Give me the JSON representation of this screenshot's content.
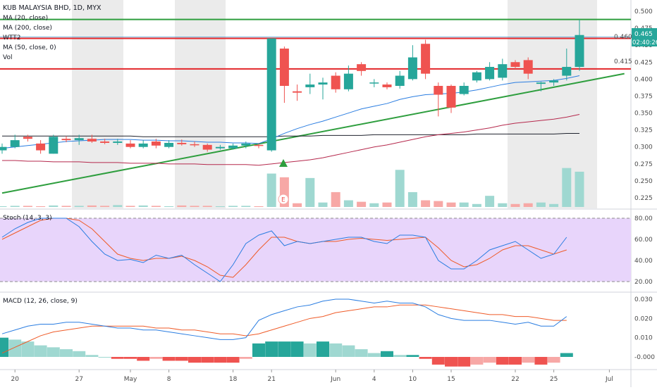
{
  "header": {
    "symbol": "KUB MALAYSIA BHD, 1D, MYX",
    "indicators": [
      "MA (20, close)",
      "MA (200, close)",
      "WTT2",
      "MA (50, close, 0)",
      "Vol"
    ]
  },
  "price_axis": {
    "ticks": [
      "0.500",
      "0.475",
      "0.450",
      "0.425",
      "0.400",
      "0.375",
      "0.350",
      "0.325",
      "0.300",
      "0.275",
      "0.250",
      "0.225"
    ],
    "current_price": "0.465",
    "countdown": "02:40:26",
    "level_label_high": "0.460",
    "level_label_low": "0.415"
  },
  "stoch": {
    "label": "Stoch (14, 3, 3)",
    "ticks": [
      "80.00",
      "60.00",
      "40.00",
      "20.00"
    ]
  },
  "macd": {
    "label": "MACD (12, 26, close, 9)",
    "ticks": [
      "0.030",
      "0.020",
      "0.010",
      "-0.000"
    ]
  },
  "date_axis": {
    "labels": [
      {
        "text": "20",
        "i": 1
      },
      {
        "text": "27",
        "i": 6
      },
      {
        "text": "May",
        "i": 10
      },
      {
        "text": "8",
        "i": 13
      },
      {
        "text": "18",
        "i": 18
      },
      {
        "text": "21",
        "i": 21
      },
      {
        "text": "Jun",
        "i": 26
      },
      {
        "text": "4",
        "i": 29
      },
      {
        "text": "10",
        "i": 32
      },
      {
        "text": "15",
        "i": 35
      },
      {
        "text": "22",
        "i": 40
      },
      {
        "text": "25",
        "i": 43
      },
      {
        "text": "Jul",
        "i": 47
      }
    ]
  },
  "marker": {
    "earnings_letter": "E"
  },
  "colors": {
    "up": "#26a69a",
    "down": "#ef5350",
    "up_vol": "#9fd8d1",
    "down_vol": "#f7a8a6",
    "ma20": "#2a7de1",
    "ma200": "#1e222d",
    "ma50": "#b5284c",
    "stoch_k": "#2a7de1",
    "stoch_d": "#ef5b28",
    "support": "#2e9e3e",
    "resistance": "#e3262a",
    "level_green": "#2e9e3e"
  },
  "chart_data": {
    "type": "candlestick",
    "candles": [
      {
        "o": 0.295,
        "h": 0.305,
        "l": 0.29,
        "c": 0.3
      },
      {
        "o": 0.3,
        "h": 0.318,
        "l": 0.298,
        "c": 0.31
      },
      {
        "o": 0.315,
        "h": 0.318,
        "l": 0.308,
        "c": 0.312
      },
      {
        "o": 0.305,
        "h": 0.31,
        "l": 0.29,
        "c": 0.295
      },
      {
        "o": 0.29,
        "h": 0.318,
        "l": 0.29,
        "c": 0.315
      },
      {
        "o": 0.312,
        "h": 0.316,
        "l": 0.307,
        "c": 0.31
      },
      {
        "o": 0.31,
        "h": 0.318,
        "l": 0.303,
        "c": 0.313
      },
      {
        "o": 0.312,
        "h": 0.318,
        "l": 0.306,
        "c": 0.308
      },
      {
        "o": 0.308,
        "h": 0.312,
        "l": 0.304,
        "c": 0.306
      },
      {
        "o": 0.306,
        "h": 0.312,
        "l": 0.303,
        "c": 0.308
      },
      {
        "o": 0.305,
        "h": 0.31,
        "l": 0.298,
        "c": 0.3
      },
      {
        "o": 0.3,
        "h": 0.31,
        "l": 0.298,
        "c": 0.305
      },
      {
        "o": 0.308,
        "h": 0.312,
        "l": 0.298,
        "c": 0.302
      },
      {
        "o": 0.3,
        "h": 0.31,
        "l": 0.298,
        "c": 0.306
      },
      {
        "o": 0.306,
        "h": 0.311,
        "l": 0.302,
        "c": 0.304
      },
      {
        "o": 0.304,
        "h": 0.308,
        "l": 0.3,
        "c": 0.303
      },
      {
        "o": 0.303,
        "h": 0.305,
        "l": 0.293,
        "c": 0.296
      },
      {
        "o": 0.298,
        "h": 0.303,
        "l": 0.296,
        "c": 0.3
      },
      {
        "o": 0.298,
        "h": 0.305,
        "l": 0.296,
        "c": 0.302
      },
      {
        "o": 0.302,
        "h": 0.308,
        "l": 0.298,
        "c": 0.305
      },
      {
        "o": 0.303,
        "h": 0.305,
        "l": 0.298,
        "c": 0.302
      },
      {
        "o": 0.295,
        "h": 0.46,
        "l": 0.293,
        "c": 0.46
      },
      {
        "o": 0.445,
        "h": 0.448,
        "l": 0.365,
        "c": 0.39
      },
      {
        "o": 0.382,
        "h": 0.392,
        "l": 0.368,
        "c": 0.38
      },
      {
        "o": 0.388,
        "h": 0.408,
        "l": 0.378,
        "c": 0.392
      },
      {
        "o": 0.392,
        "h": 0.402,
        "l": 0.37,
        "c": 0.395
      },
      {
        "o": 0.405,
        "h": 0.41,
        "l": 0.38,
        "c": 0.385
      },
      {
        "o": 0.385,
        "h": 0.42,
        "l": 0.382,
        "c": 0.408
      },
      {
        "o": 0.422,
        "h": 0.425,
        "l": 0.405,
        "c": 0.412
      },
      {
        "o": 0.395,
        "h": 0.4,
        "l": 0.388,
        "c": 0.395
      },
      {
        "o": 0.392,
        "h": 0.395,
        "l": 0.385,
        "c": 0.388
      },
      {
        "o": 0.39,
        "h": 0.412,
        "l": 0.386,
        "c": 0.405
      },
      {
        "o": 0.4,
        "h": 0.45,
        "l": 0.398,
        "c": 0.432
      },
      {
        "o": 0.452,
        "h": 0.458,
        "l": 0.4,
        "c": 0.408
      },
      {
        "o": 0.39,
        "h": 0.395,
        "l": 0.345,
        "c": 0.377
      },
      {
        "o": 0.39,
        "h": 0.392,
        "l": 0.35,
        "c": 0.358
      },
      {
        "o": 0.378,
        "h": 0.395,
        "l": 0.376,
        "c": 0.39
      },
      {
        "o": 0.398,
        "h": 0.412,
        "l": 0.395,
        "c": 0.41
      },
      {
        "o": 0.4,
        "h": 0.425,
        "l": 0.398,
        "c": 0.418
      },
      {
        "o": 0.402,
        "h": 0.43,
        "l": 0.398,
        "c": 0.422
      },
      {
        "o": 0.425,
        "h": 0.428,
        "l": 0.415,
        "c": 0.418
      },
      {
        "o": 0.428,
        "h": 0.432,
        "l": 0.4,
        "c": 0.408
      },
      {
        "o": 0.393,
        "h": 0.396,
        "l": 0.382,
        "c": 0.395
      },
      {
        "o": 0.395,
        "h": 0.4,
        "l": 0.39,
        "c": 0.398
      },
      {
        "o": 0.405,
        "h": 0.445,
        "l": 0.398,
        "c": 0.418
      },
      {
        "o": 0.418,
        "h": 0.488,
        "l": 0.412,
        "c": 0.465
      }
    ],
    "volume": [
      2,
      3,
      3,
      2,
      4,
      3,
      3,
      4,
      3,
      5,
      3,
      4,
      3,
      2,
      4,
      3,
      3,
      2,
      3,
      3,
      2,
      90,
      80,
      10,
      78,
      12,
      40,
      18,
      14,
      10,
      12,
      100,
      40,
      18,
      16,
      12,
      12,
      8,
      30,
      10,
      8,
      10,
      12,
      8,
      105,
      95
    ],
    "ma20": [
      0.298,
      0.3,
      0.302,
      0.304,
      0.306,
      0.308,
      0.309,
      0.31,
      0.311,
      0.311,
      0.311,
      0.31,
      0.31,
      0.309,
      0.309,
      0.308,
      0.307,
      0.307,
      0.306,
      0.306,
      0.305,
      0.312,
      0.32,
      0.327,
      0.333,
      0.338,
      0.344,
      0.35,
      0.356,
      0.36,
      0.364,
      0.37,
      0.374,
      0.377,
      0.378,
      0.379,
      0.381,
      0.384,
      0.388,
      0.392,
      0.395,
      0.396,
      0.397,
      0.398,
      0.401,
      0.405
    ],
    "ma50": [
      0.28,
      0.28,
      0.279,
      0.279,
      0.278,
      0.278,
      0.278,
      0.277,
      0.277,
      0.277,
      0.276,
      0.276,
      0.276,
      0.275,
      0.275,
      0.275,
      0.274,
      0.274,
      0.274,
      0.274,
      0.273,
      0.275,
      0.277,
      0.279,
      0.281,
      0.284,
      0.288,
      0.292,
      0.296,
      0.3,
      0.303,
      0.307,
      0.311,
      0.315,
      0.318,
      0.32,
      0.322,
      0.325,
      0.328,
      0.332,
      0.335,
      0.337,
      0.339,
      0.341,
      0.344,
      0.348
    ],
    "ma200": [
      0.316,
      0.316,
      0.316,
      0.316,
      0.316,
      0.316,
      0.316,
      0.316,
      0.316,
      0.316,
      0.316,
      0.315,
      0.315,
      0.315,
      0.315,
      0.315,
      0.315,
      0.315,
      0.315,
      0.315,
      0.315,
      0.315,
      0.316,
      0.316,
      0.316,
      0.317,
      0.317,
      0.317,
      0.317,
      0.318,
      0.318,
      0.318,
      0.318,
      0.318,
      0.318,
      0.318,
      0.318,
      0.319,
      0.319,
      0.319,
      0.319,
      0.319,
      0.319,
      0.319,
      0.32,
      0.32
    ],
    "levels": {
      "top_green": 0.488,
      "high": 0.46,
      "low": 0.415,
      "wtt2_high": 0.462
    },
    "support_line": {
      "from": {
        "i": 0,
        "price": 0.232
      },
      "to": {
        "i": 48.5,
        "price": 0.408
      }
    },
    "stoch_k": [
      62,
      70,
      76,
      80,
      80,
      80,
      72,
      58,
      46,
      40,
      41,
      38,
      45,
      42,
      45,
      36,
      28,
      20,
      36,
      56,
      64,
      68,
      54,
      58,
      56,
      58,
      60,
      62,
      62,
      58,
      56,
      64,
      64,
      62,
      40,
      32,
      32,
      40,
      50,
      54,
      58,
      50,
      42,
      46,
      62
    ],
    "stoch_d": [
      60,
      66,
      72,
      78,
      80,
      80,
      78,
      70,
      58,
      46,
      42,
      40,
      42,
      42,
      44,
      40,
      34,
      26,
      24,
      36,
      50,
      62,
      62,
      58,
      56,
      58,
      58,
      60,
      61,
      60,
      59,
      60,
      61,
      62,
      52,
      40,
      34,
      36,
      42,
      50,
      54,
      54,
      50,
      46,
      50
    ],
    "stoch_range": [
      0,
      100
    ],
    "macd": [
      0.012,
      0.014,
      0.016,
      0.017,
      0.017,
      0.018,
      0.018,
      0.017,
      0.016,
      0.015,
      0.015,
      0.014,
      0.014,
      0.013,
      0.012,
      0.011,
      0.01,
      0.009,
      0.009,
      0.01,
      0.019,
      0.022,
      0.024,
      0.026,
      0.027,
      0.029,
      0.03,
      0.03,
      0.029,
      0.028,
      0.029,
      0.028,
      0.028,
      0.026,
      0.022,
      0.02,
      0.019,
      0.019,
      0.019,
      0.018,
      0.017,
      0.018,
      0.016,
      0.016,
      0.021
    ],
    "macd_signal": [
      0.002,
      0.005,
      0.008,
      0.011,
      0.013,
      0.014,
      0.015,
      0.016,
      0.016,
      0.016,
      0.016,
      0.016,
      0.015,
      0.015,
      0.014,
      0.014,
      0.013,
      0.012,
      0.012,
      0.011,
      0.012,
      0.014,
      0.016,
      0.018,
      0.02,
      0.021,
      0.023,
      0.024,
      0.025,
      0.026,
      0.026,
      0.027,
      0.027,
      0.027,
      0.026,
      0.025,
      0.024,
      0.023,
      0.022,
      0.022,
      0.021,
      0.021,
      0.02,
      0.019,
      0.019
    ],
    "macd_hist": [
      0.01,
      0.009,
      0.008,
      0.006,
      0.005,
      0.004,
      0.003,
      0.001,
      0.0,
      -0.001,
      -0.001,
      -0.002,
      -0.001,
      -0.002,
      -0.002,
      -0.003,
      -0.003,
      -0.003,
      -0.003,
      -0.001,
      0.007,
      0.008,
      0.008,
      0.008,
      0.007,
      0.008,
      0.007,
      0.006,
      0.004,
      0.002,
      0.003,
      0.001,
      0.001,
      -0.001,
      -0.004,
      -0.005,
      -0.005,
      -0.004,
      -0.003,
      -0.004,
      -0.004,
      -0.003,
      -0.004,
      -0.003,
      0.002
    ],
    "macd_range": [
      -0.005,
      0.034
    ]
  }
}
